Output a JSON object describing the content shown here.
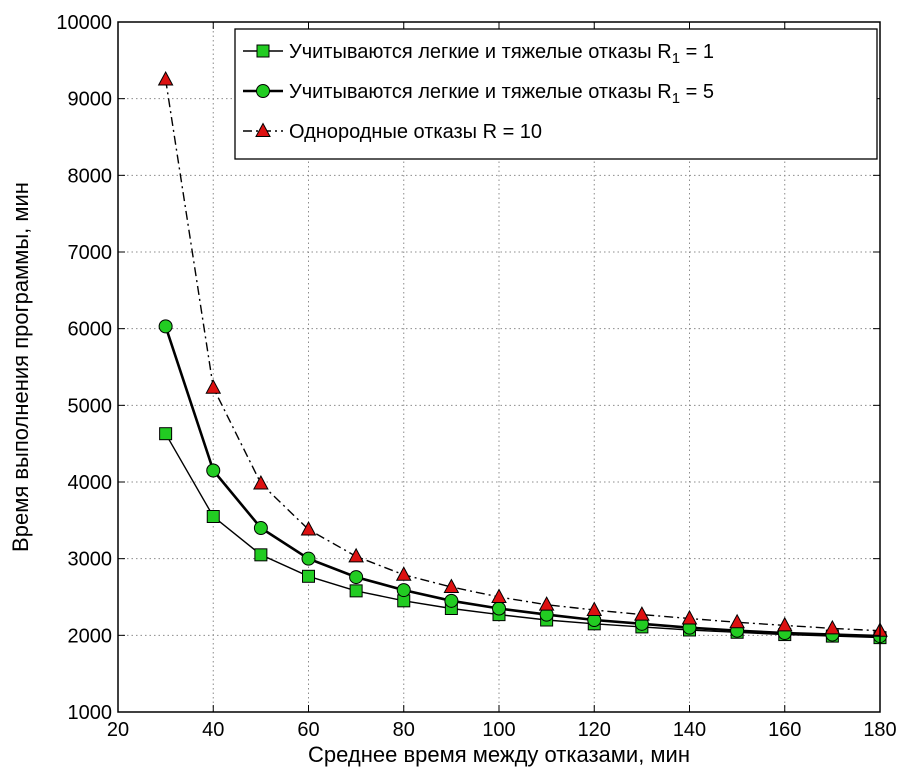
{
  "chart_data": {
    "type": "line",
    "title": "",
    "xlabel": "Среднее время между отказами, мин",
    "ylabel": "Время выполнения программы, мин",
    "xlim": [
      20,
      180
    ],
    "ylim": [
      1000,
      10000
    ],
    "x_ticks": [
      20,
      40,
      60,
      80,
      100,
      120,
      140,
      160,
      180
    ],
    "y_ticks": [
      1000,
      2000,
      3000,
      4000,
      5000,
      6000,
      7000,
      8000,
      9000,
      10000
    ],
    "grid": true,
    "legend_position": "top-right",
    "x": [
      30,
      40,
      50,
      60,
      70,
      80,
      90,
      100,
      110,
      120,
      130,
      140,
      150,
      160,
      170,
      180
    ],
    "series": [
      {
        "name_main": "Учитываются легкие и тяжелые отказы R",
        "name_sub": "1",
        "name_tail": " = 1",
        "marker": "square",
        "line_style": "solid",
        "line_width": "thin",
        "marker_color": "#22cc22",
        "values": [
          4630,
          3550,
          3050,
          2770,
          2580,
          2450,
          2350,
          2270,
          2200,
          2150,
          2110,
          2070,
          2040,
          2010,
          1990,
          1970
        ]
      },
      {
        "name_main": "Учитываются легкие и тяжелые отказы R",
        "name_sub": "1",
        "name_tail": " = 5",
        "marker": "circle",
        "line_style": "solid",
        "line_width": "thick",
        "marker_color": "#22cc22",
        "values": [
          6030,
          4150,
          3400,
          3000,
          2760,
          2590,
          2450,
          2350,
          2270,
          2200,
          2150,
          2100,
          2060,
          2030,
          2010,
          1990
        ]
      },
      {
        "name_main": "Однородные отказы R = 10",
        "name_sub": "",
        "name_tail": "",
        "marker": "triangle",
        "line_style": "dashdot",
        "line_width": "thin",
        "marker_color": "#dd1111",
        "values": [
          9250,
          5230,
          3980,
          3380,
          3030,
          2790,
          2630,
          2500,
          2400,
          2330,
          2270,
          2220,
          2170,
          2130,
          2090,
          2060
        ]
      }
    ]
  }
}
